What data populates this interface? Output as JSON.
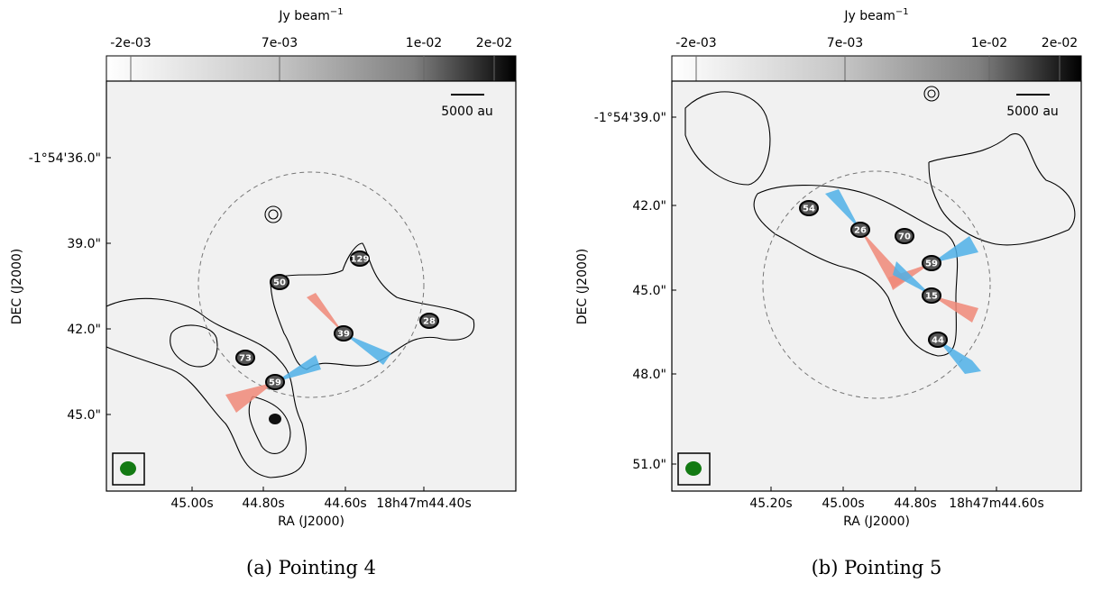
{
  "panels": [
    {
      "colorbar": {
        "label": "Jy beam",
        "label_exponent": "−1",
        "ticks": [
          "-2e-03",
          "7e-03",
          "1e-02",
          "2e-02"
        ]
      },
      "scalebar": "5000 au",
      "xlabel": "RA (J2000)",
      "ylabel": "DEC (J2000)",
      "xticks": [
        "45.00s",
        "44.80s",
        "44.60s",
        "18h47m44.40s"
      ],
      "yticks": [
        "-1°54'36.0\"",
        "39.0\"",
        "42.0\"",
        "45.0\""
      ],
      "sources": [
        "73",
        "59",
        "50",
        "129",
        "39",
        "28"
      ],
      "caption": "(a) Pointing 4"
    },
    {
      "colorbar": {
        "label": "Jy beam",
        "label_exponent": "−1",
        "ticks": [
          "-2e-03",
          "7e-03",
          "1e-02",
          "2e-02"
        ]
      },
      "scalebar": "5000 au",
      "xlabel": "RA (J2000)",
      "ylabel": "DEC (J2000)",
      "xticks": [
        "45.20s",
        "45.00s",
        "44.80s",
        "18h47m44.60s"
      ],
      "yticks": [
        "-1°54'39.0\"",
        "42.0\"",
        "45.0\"",
        "48.0\"",
        "51.0\""
      ],
      "sources": [
        "54",
        "26",
        "70",
        "59",
        "15",
        "44"
      ],
      "caption": "(b) Pointing 5"
    }
  ]
}
